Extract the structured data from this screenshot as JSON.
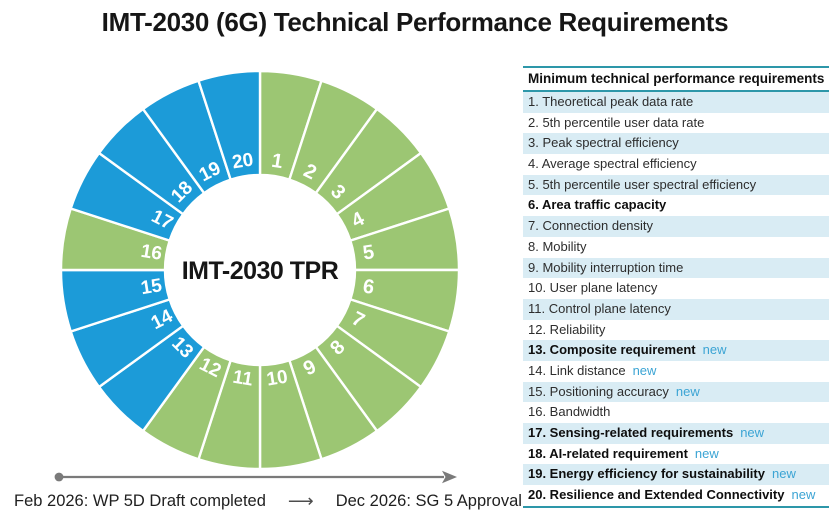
{
  "title": "IMT-2030 (6G) Technical Performance Requirements",
  "chart_data": {
    "type": "pie",
    "subtype": "donut",
    "center_label": "IMT-2030 TPR",
    "legend": "none",
    "colors": {
      "existing": "#9cc673",
      "new": "#1c9bd8",
      "border": "#ffffff"
    },
    "segments": [
      {
        "label": "1",
        "value": 1,
        "new": false
      },
      {
        "label": "2",
        "value": 1,
        "new": false
      },
      {
        "label": "3",
        "value": 1,
        "new": false
      },
      {
        "label": "4",
        "value": 1,
        "new": false
      },
      {
        "label": "5",
        "value": 1,
        "new": false
      },
      {
        "label": "6",
        "value": 1,
        "new": false
      },
      {
        "label": "7",
        "value": 1,
        "new": false
      },
      {
        "label": "8",
        "value": 1,
        "new": false
      },
      {
        "label": "9",
        "value": 1,
        "new": false
      },
      {
        "label": "10",
        "value": 1,
        "new": false
      },
      {
        "label": "11",
        "value": 1,
        "new": false
      },
      {
        "label": "12",
        "value": 1,
        "new": false
      },
      {
        "label": "13",
        "value": 1,
        "new": true
      },
      {
        "label": "14",
        "value": 1,
        "new": true
      },
      {
        "label": "15",
        "value": 1,
        "new": true
      },
      {
        "label": "16",
        "value": 1,
        "new": false
      },
      {
        "label": "17",
        "value": 1,
        "new": true
      },
      {
        "label": "18",
        "value": 1,
        "new": true
      },
      {
        "label": "19",
        "value": 1,
        "new": true
      },
      {
        "label": "20",
        "value": 1,
        "new": true
      }
    ]
  },
  "table": {
    "header": "Minimum technical performance requirements",
    "new_tag": "new",
    "rows": [
      {
        "text": "1. Theoretical peak data rate",
        "bold": false,
        "new": false
      },
      {
        "text": "2. 5th percentile user data rate",
        "bold": false,
        "new": false
      },
      {
        "text": "3. Peak spectral efficiency",
        "bold": false,
        "new": false
      },
      {
        "text": "4. Average spectral efficiency",
        "bold": false,
        "new": false
      },
      {
        "text": "5. 5th percentile user spectral efficiency",
        "bold": false,
        "new": false
      },
      {
        "text": "6. Area traffic capacity",
        "bold": true,
        "new": false
      },
      {
        "text": "7. Connection density",
        "bold": false,
        "new": false
      },
      {
        "text": "8. Mobility",
        "bold": false,
        "new": false
      },
      {
        "text": "9. Mobility interruption time",
        "bold": false,
        "new": false
      },
      {
        "text": "10. User plane latency",
        "bold": false,
        "new": false
      },
      {
        "text": "11. Control plane latency",
        "bold": false,
        "new": false
      },
      {
        "text": "12. Reliability",
        "bold": false,
        "new": false
      },
      {
        "text": "13. Composite requirement",
        "bold": true,
        "new": true
      },
      {
        "text": "14. Link distance",
        "bold": false,
        "new": true
      },
      {
        "text": "15. Positioning accuracy",
        "bold": false,
        "new": true
      },
      {
        "text": "16. Bandwidth",
        "bold": false,
        "new": false
      },
      {
        "text": "17. Sensing-related requirements",
        "bold": true,
        "new": true
      },
      {
        "text": "18. AI-related requirement",
        "bold": true,
        "new": true
      },
      {
        "text": "19. Energy efficiency for sustainability",
        "bold": true,
        "new": true
      },
      {
        "text": "20. Resilience and Extended Connectivity",
        "bold": true,
        "new": true
      }
    ]
  },
  "timeline": {
    "start_label": "Feb 2026: WP 5D Draft completed",
    "arrow_glyph": "⟶",
    "end_label": "Dec 2026: SG 5 Approval",
    "line_color": "#7a7a7a"
  },
  "colors": {
    "rule_teal": "#2d97a9",
    "row_alt_bg": "#d9ecf4",
    "new_text": "#3ba4d4"
  }
}
